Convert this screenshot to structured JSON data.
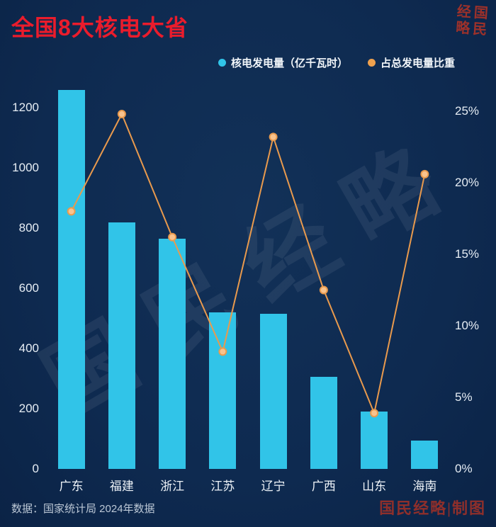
{
  "title": "全国8大核电大省",
  "legend": [
    {
      "label": "核电发电量（亿千瓦时）",
      "color": "#31c4e8"
    },
    {
      "label": "占总发电量比重",
      "color": "#efa14e"
    }
  ],
  "source": "数据：国家统计局 2024年数据",
  "credit": "国民经略|制图",
  "watermark": "国民经略",
  "seal_chars": [
    "经",
    "国",
    "略",
    "民"
  ],
  "colors": {
    "background": "#0e2a50",
    "bar": "#31c4e8",
    "line": "#e99a4d",
    "marker_fill": "#f9c38d",
    "title": "#ea1c2c"
  },
  "chart_data": {
    "type": "bar",
    "subtype": "bar+line dual axis",
    "categories": [
      "广东",
      "福建",
      "浙江",
      "江苏",
      "辽宁",
      "广西",
      "山东",
      "海南"
    ],
    "series": [
      {
        "name": "核电发电量（亿千瓦时）",
        "type": "bar",
        "axis": "left",
        "color": "#31c4e8",
        "values": [
          1260,
          820,
          765,
          520,
          515,
          305,
          190,
          95
        ]
      },
      {
        "name": "占总发电量比重",
        "type": "line",
        "axis": "right",
        "color": "#e99a4d",
        "values": [
          18.0,
          24.8,
          16.2,
          8.2,
          23.2,
          12.5,
          3.9,
          20.6
        ]
      }
    ],
    "left_axis": {
      "min": 0,
      "max": 1200,
      "step": 200,
      "ticks": [
        0,
        200,
        400,
        600,
        800,
        1000,
        1200
      ]
    },
    "right_axis": {
      "min": 0,
      "max": 25,
      "step": 5,
      "tick_values": [
        0,
        5,
        10,
        15,
        20,
        25
      ],
      "ticks": [
        "0%",
        "5%",
        "10%",
        "15%",
        "20%",
        "25%"
      ]
    },
    "grid": false,
    "legend_position": "top-right"
  }
}
